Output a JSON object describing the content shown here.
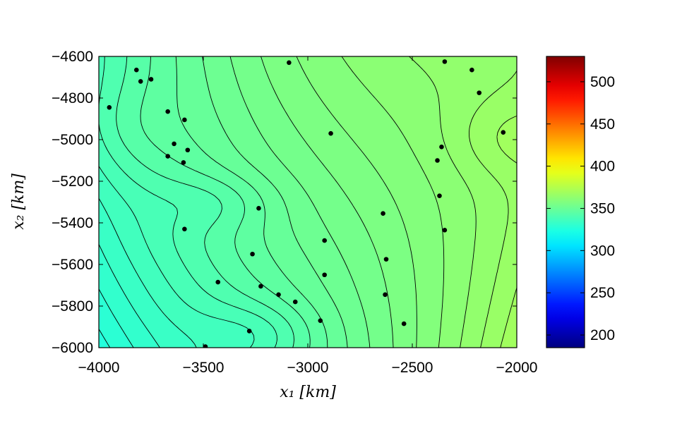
{
  "chart_data": {
    "type": "heatmap",
    "subtype": "filled-contour",
    "xlabel": "x₁ [km]",
    "ylabel": "x₂ [km]",
    "x_ticks": [
      -4000,
      -3500,
      -3000,
      -2500,
      -2000
    ],
    "y_ticks": [
      -4600,
      -4800,
      -5000,
      -5200,
      -5400,
      -5600,
      -5800,
      -6000
    ],
    "xlim": [
      -4000,
      -2000
    ],
    "ylim": [
      -6000,
      -4600
    ],
    "colorbar": {
      "colormap": "jet",
      "range": [
        185,
        530
      ],
      "ticks": [
        200,
        250,
        300,
        350,
        400,
        450,
        500
      ]
    },
    "field_range": [
      315,
      395
    ],
    "contour_step": 2.5,
    "points": [
      {
        "x": -3820,
        "y": -4665
      },
      {
        "x": -3800,
        "y": -4720
      },
      {
        "x": -3750,
        "y": -4710
      },
      {
        "x": -3950,
        "y": -4845
      },
      {
        "x": -3670,
        "y": -4865
      },
      {
        "x": -3590,
        "y": -4905
      },
      {
        "x": -3640,
        "y": -5020
      },
      {
        "x": -3670,
        "y": -5080
      },
      {
        "x": -3575,
        "y": -5050
      },
      {
        "x": -3595,
        "y": -5110
      },
      {
        "x": -3090,
        "y": -4630
      },
      {
        "x": -2890,
        "y": -4970
      },
      {
        "x": -2345,
        "y": -4625
      },
      {
        "x": -2215,
        "y": -4665
      },
      {
        "x": -2180,
        "y": -4775
      },
      {
        "x": -2065,
        "y": -4965
      },
      {
        "x": -2360,
        "y": -5035
      },
      {
        "x": -2380,
        "y": -5100
      },
      {
        "x": -2370,
        "y": -5270
      },
      {
        "x": -2345,
        "y": -5435
      },
      {
        "x": -3235,
        "y": -5330
      },
      {
        "x": -2640,
        "y": -5355
      },
      {
        "x": -3590,
        "y": -5430
      },
      {
        "x": -2920,
        "y": -5485
      },
      {
        "x": -3265,
        "y": -5550
      },
      {
        "x": -2625,
        "y": -5575
      },
      {
        "x": -2920,
        "y": -5650
      },
      {
        "x": -3430,
        "y": -5685
      },
      {
        "x": -3225,
        "y": -5705
      },
      {
        "x": -3140,
        "y": -5745
      },
      {
        "x": -2630,
        "y": -5745
      },
      {
        "x": -3060,
        "y": -5780
      },
      {
        "x": -2940,
        "y": -5870
      },
      {
        "x": -2540,
        "y": -5885
      },
      {
        "x": -3280,
        "y": -5920
      },
      {
        "x": -3490,
        "y": -5995
      }
    ]
  }
}
